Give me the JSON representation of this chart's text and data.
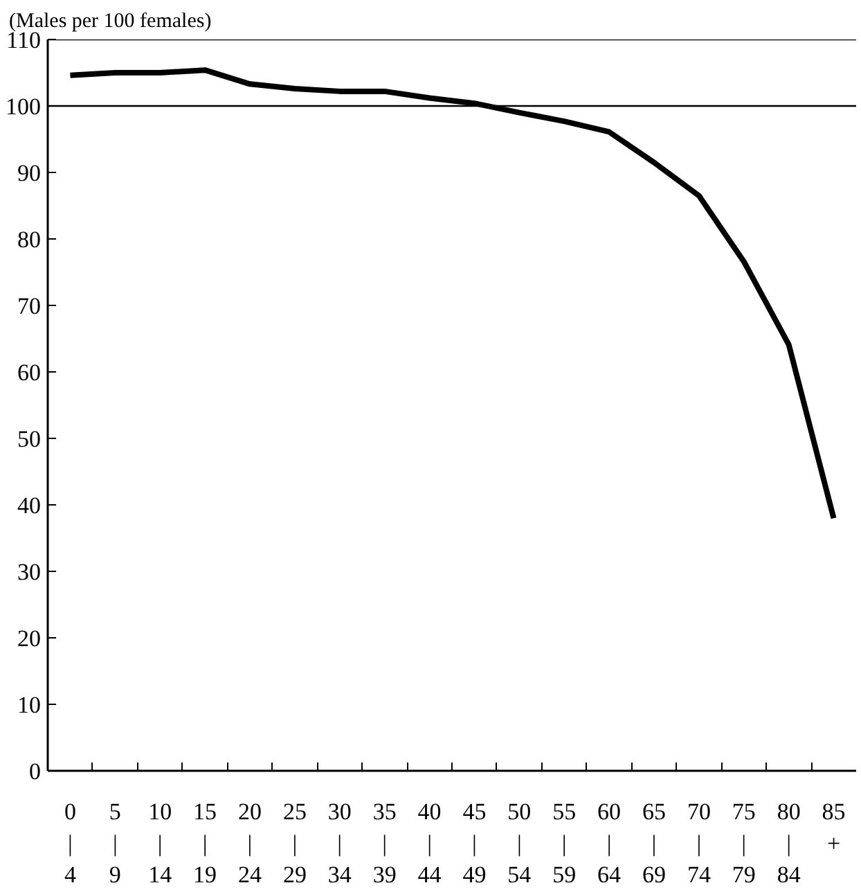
{
  "chart_data": {
    "type": "line",
    "ylabel": "(Males per 100 females)",
    "categories": [
      "0\n|\n4",
      "5\n|\n9",
      "10\n|\n14",
      "15\n|\n19",
      "20\n|\n24",
      "25\n|\n29",
      "30\n|\n34",
      "35\n|\n39",
      "40\n|\n44",
      "45\n|\n49",
      "50\n|\n54",
      "55\n|\n59",
      "60\n|\n64",
      "65\n|\n69",
      "70\n|\n74",
      "75\n|\n79",
      "80\n|\n84",
      "85\n+"
    ],
    "series": [
      {
        "color": "#000000",
        "values": [
          104.6,
          105.0,
          105.0,
          105.4,
          103.3,
          102.6,
          102.2,
          102.2,
          101.2,
          100.4,
          99.0,
          97.7,
          96.1,
          91.5,
          86.5,
          76.6,
          64.1,
          38.0
        ]
      }
    ],
    "ylim": [
      0,
      110
    ],
    "yticks": [
      0,
      10,
      20,
      30,
      40,
      50,
      60,
      70,
      80,
      90,
      100,
      110
    ],
    "ref_lines": [
      {
        "axis": "y",
        "value": 100,
        "color": "#000000"
      }
    ],
    "grid": false,
    "marker": "none",
    "line_style": "solid"
  }
}
